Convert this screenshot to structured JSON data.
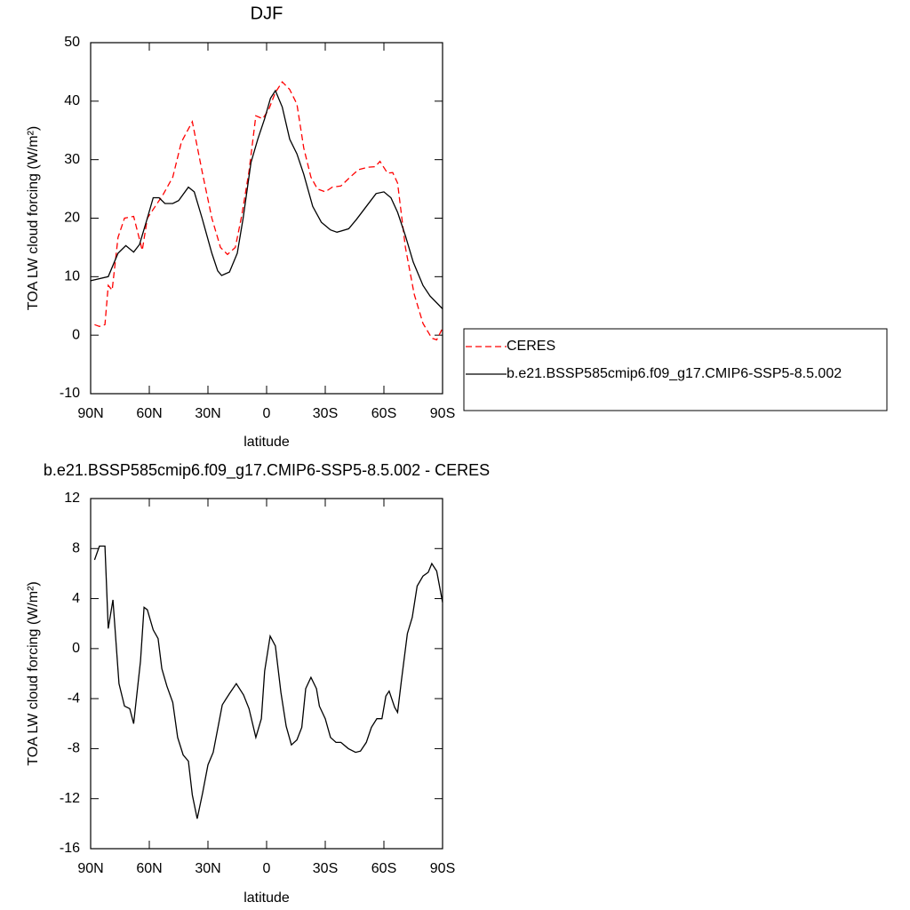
{
  "chart_data": [
    {
      "type": "line",
      "title": "DJF",
      "x_label": "latitude",
      "y_label": "TOA LW cloud forcing (W/m²)",
      "xlim": [
        90,
        -90
      ],
      "xticks": [
        {
          "value": 90,
          "label": "90N"
        },
        {
          "value": 60,
          "label": "60N"
        },
        {
          "value": 30,
          "label": "30N"
        },
        0,
        {
          "value": -30,
          "label": "30S"
        },
        {
          "value": -60,
          "label": "60S"
        },
        {
          "value": -90,
          "label": "90S"
        }
      ],
      "ylim": [
        -10,
        50
      ],
      "yticks": [
        -10,
        0,
        10,
        20,
        30,
        40,
        50
      ],
      "legend": "right",
      "series": [
        {
          "name": "CERES",
          "color": "#ff0000",
          "dashed": true,
          "x": [
            88,
            85.5,
            82.7,
            81,
            79,
            76,
            72.7,
            68,
            63.6,
            61,
            57,
            53,
            48,
            43.6,
            38,
            33,
            28,
            23.6,
            20,
            16,
            12.7,
            9,
            5.5,
            2,
            -1,
            -4.5,
            -8,
            -11.8,
            -15.5,
            -19,
            -22.7,
            -26,
            -30,
            -33.6,
            -38,
            -42.7,
            -47,
            -51.8,
            -55.5,
            -58,
            -61.8,
            -64.5,
            -67,
            -71,
            -75.5,
            -80,
            -84.5,
            -87,
            -90
          ],
          "values": [
            1.8,
            1.5,
            1.8,
            8.5,
            7.7,
            16.7,
            20,
            20.3,
            14.5,
            20,
            22,
            24,
            27,
            33,
            36.5,
            28,
            20,
            15,
            13.8,
            15,
            20.5,
            28,
            37.5,
            37,
            38.5,
            41.5,
            43.3,
            42,
            39.5,
            32,
            27,
            25,
            24.5,
            25.3,
            25.5,
            27,
            28.3,
            28.7,
            28.8,
            29.7,
            27.7,
            27.8,
            26,
            15,
            7,
            2,
            -0.5,
            -0.8,
            1.2
          ]
        },
        {
          "name": "b.e21.BSSP585cmip6.f09_g17.CMIP6-SSP5-8.5.002",
          "color": "#000000",
          "dashed": false,
          "x": [
            90,
            81,
            76,
            72,
            68,
            65,
            61,
            58,
            55,
            52,
            48,
            45,
            40,
            37,
            33,
            28,
            25,
            23,
            19,
            15,
            12,
            8,
            4.5,
            1,
            -2,
            -4.5,
            -8,
            -11.8,
            -15.5,
            -19,
            -23.6,
            -28,
            -32.7,
            -36,
            -42,
            -46,
            -51,
            -56,
            -60,
            -63.6,
            -67,
            -71,
            -75,
            -80,
            -83.6,
            -90
          ],
          "values": [
            9.3,
            10,
            14,
            15.3,
            14.2,
            15.5,
            20,
            23.5,
            23.5,
            22.5,
            22.5,
            23,
            25.3,
            24.5,
            20,
            14,
            11,
            10.2,
            10.8,
            14,
            20,
            29.5,
            33.5,
            37,
            40.5,
            41.8,
            39,
            33.5,
            31,
            27.5,
            22,
            19.3,
            18,
            17.6,
            18.2,
            19.8,
            22,
            24.2,
            24.5,
            23.5,
            21,
            17,
            12.5,
            8.5,
            6.7,
            4.5
          ]
        }
      ]
    },
    {
      "type": "line",
      "title": "b.e21.BSSP585cmip6.f09_g17.CMIP6-SSP5-8.5.002 - CERES",
      "x_label": "latitude",
      "y_label": "TOA LW cloud forcing (W/m²)",
      "xlim": [
        90,
        -90
      ],
      "xticks": [
        {
          "value": 90,
          "label": "90N"
        },
        {
          "value": 60,
          "label": "60N"
        },
        {
          "value": 30,
          "label": "30N"
        },
        0,
        {
          "value": -30,
          "label": "30S"
        },
        {
          "value": -60,
          "label": "60S"
        },
        {
          "value": -90,
          "label": "90S"
        }
      ],
      "ylim": [
        -16,
        12
      ],
      "yticks": [
        -16,
        -12,
        -8,
        -4,
        0,
        4,
        8,
        12
      ],
      "series": [
        {
          "color": "#000000",
          "dashed": false,
          "x": [
            88,
            85.5,
            82.7,
            81,
            78.6,
            75.5,
            72.7,
            70,
            68,
            64.5,
            62.7,
            61,
            58,
            55.5,
            53.6,
            51,
            48,
            45.5,
            42.7,
            40,
            38,
            35.5,
            32.7,
            30,
            27.3,
            24.5,
            22.7,
            19,
            15.5,
            11.8,
            9,
            5.5,
            2.7,
            1,
            -1.8,
            -4.5,
            -7.3,
            -10,
            -12.7,
            -15.5,
            -18,
            -20,
            -22.7,
            -25.5,
            -27,
            -30,
            -32.7,
            -35.5,
            -38,
            -41.8,
            -45.5,
            -48,
            -51,
            -53.6,
            -56.4,
            -59,
            -61,
            -62.7,
            -65.5,
            -67,
            -69,
            -72,
            -74.5,
            -77,
            -80,
            -82.7,
            -84.5,
            -87,
            -90
          ],
          "values": [
            7.1,
            8.2,
            8.2,
            1.6,
            3.9,
            -2.8,
            -4.6,
            -4.8,
            -6,
            -1,
            3.3,
            3.1,
            1.5,
            0.8,
            -1.6,
            -3,
            -4.3,
            -7.1,
            -8.5,
            -9,
            -11.7,
            -13.6,
            -11.5,
            -9.3,
            -8.3,
            -6,
            -4.5,
            -3.6,
            -2.8,
            -3.7,
            -4.8,
            -7.1,
            -5.6,
            -1.8,
            1,
            0.2,
            -3.5,
            -6.2,
            -7.7,
            -7.3,
            -6.3,
            -3.2,
            -2.3,
            -3.2,
            -4.6,
            -5.6,
            -7.1,
            -7.5,
            -7.5,
            -8,
            -8.3,
            -8.2,
            -7.5,
            -6.3,
            -5.6,
            -5.6,
            -3.8,
            -3.4,
            -4.7,
            -5.1,
            -2.5,
            1.2,
            2.5,
            5,
            5.8,
            6.1,
            6.8,
            6.2,
            3.7
          ]
        }
      ]
    }
  ]
}
